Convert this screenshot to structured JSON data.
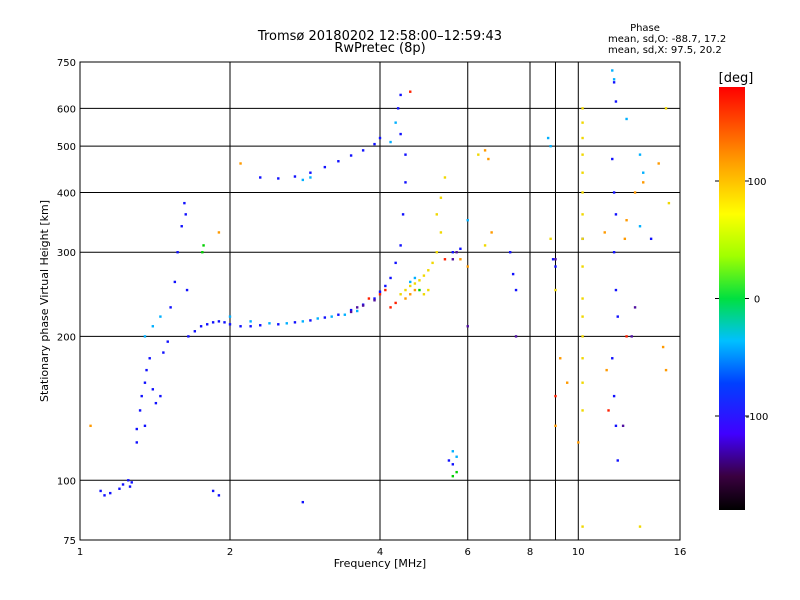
{
  "chart_data": {
    "type": "scatter",
    "title": "Tromsø 20180202 12:58:00–12:59:43",
    "subtitle": "RwPretec (8p)",
    "xlabel": "Frequency [MHz]",
    "ylabel": "Stationary phase Virtual Height [km]",
    "x_scale": "log",
    "y_scale": "log",
    "xlim": [
      1,
      16
    ],
    "ylim": [
      75,
      750
    ],
    "x_ticks": [
      1,
      2,
      4,
      6,
      8,
      10,
      16
    ],
    "x_tick_labels": [
      "1",
      "2",
      "4",
      "6",
      "8",
      "10",
      "16"
    ],
    "x_minor_ticks": [
      9
    ],
    "y_ticks": [
      75,
      100,
      200,
      300,
      400,
      500,
      600,
      750
    ],
    "y_tick_labels": [
      "75",
      "100",
      "200",
      "300",
      "400",
      "500",
      "600",
      "750"
    ],
    "grid": true,
    "stats": {
      "heading": "Phase",
      "line_o": "mean, sd,O: -88.7, 17.2",
      "line_x": "mean, sd,X:  97.5, 20.2"
    },
    "colorbar": {
      "label": "[deg]",
      "range": [
        -180,
        180
      ],
      "ticks": [
        100,
        0,
        -100
      ],
      "tick_labels": [
        "100",
        "0",
        "-100"
      ]
    },
    "series": [
      {
        "color": "blue",
        "points": [
          [
            1.1,
            95
          ],
          [
            1.12,
            93
          ],
          [
            1.15,
            94
          ],
          [
            1.2,
            96
          ],
          [
            1.22,
            98
          ],
          [
            1.25,
            100
          ],
          [
            1.26,
            97
          ],
          [
            1.27,
            99
          ],
          [
            1.3,
            128
          ],
          [
            1.32,
            140
          ],
          [
            1.33,
            150
          ],
          [
            1.35,
            160
          ],
          [
            1.36,
            170
          ],
          [
            1.38,
            180
          ],
          [
            1.4,
            155
          ],
          [
            1.42,
            145
          ],
          [
            1.45,
            150
          ],
          [
            1.47,
            185
          ],
          [
            1.5,
            195
          ],
          [
            1.52,
            230
          ],
          [
            1.55,
            260
          ],
          [
            1.57,
            300
          ],
          [
            1.6,
            340
          ],
          [
            1.62,
            380
          ],
          [
            1.63,
            360
          ],
          [
            1.64,
            250
          ],
          [
            1.65,
            200
          ],
          [
            1.7,
            205
          ],
          [
            1.75,
            210
          ],
          [
            1.8,
            212
          ],
          [
            1.85,
            214
          ],
          [
            1.9,
            215
          ],
          [
            1.95,
            214
          ],
          [
            2.0,
            212
          ],
          [
            2.1,
            210
          ],
          [
            2.2,
            210
          ],
          [
            2.3,
            211
          ],
          [
            2.5,
            212
          ],
          [
            2.7,
            214
          ],
          [
            2.9,
            216
          ],
          [
            3.1,
            219
          ],
          [
            3.3,
            222
          ],
          [
            3.5,
            227
          ],
          [
            3.7,
            233
          ],
          [
            3.9,
            240
          ],
          [
            4.0,
            248
          ],
          [
            4.1,
            255
          ],
          [
            4.2,
            265
          ],
          [
            4.3,
            285
          ],
          [
            4.4,
            310
          ],
          [
            4.45,
            360
          ],
          [
            4.5,
            420
          ],
          [
            4.5,
            480
          ],
          [
            4.4,
            530
          ],
          [
            4.35,
            600
          ],
          [
            4.4,
            640
          ],
          [
            2.3,
            430
          ],
          [
            2.5,
            428
          ],
          [
            2.7,
            432
          ],
          [
            2.9,
            440
          ],
          [
            3.1,
            452
          ],
          [
            3.3,
            465
          ],
          [
            3.5,
            478
          ],
          [
            3.7,
            490
          ],
          [
            3.9,
            505
          ],
          [
            4.0,
            520
          ],
          [
            5.6,
            300
          ],
          [
            5.8,
            305
          ],
          [
            5.5,
            110
          ],
          [
            5.6,
            108
          ],
          [
            7.3,
            300
          ],
          [
            7.4,
            270
          ],
          [
            7.5,
            250
          ],
          [
            11.7,
            470
          ],
          [
            11.8,
            400
          ],
          [
            11.9,
            360
          ],
          [
            11.8,
            300
          ],
          [
            11.9,
            250
          ],
          [
            12.0,
            220
          ],
          [
            11.7,
            180
          ],
          [
            11.8,
            150
          ],
          [
            11.9,
            130
          ],
          [
            12.0,
            110
          ],
          [
            11.8,
            680
          ],
          [
            11.9,
            620
          ],
          [
            14.0,
            320
          ],
          [
            10.2,
            320
          ],
          [
            9.0,
            280
          ],
          [
            8.9,
            290
          ],
          [
            2.8,
            90
          ],
          [
            1.9,
            93
          ],
          [
            1.85,
            95
          ],
          [
            1.3,
            120
          ],
          [
            1.35,
            130
          ]
        ]
      },
      {
        "color": "cyan",
        "points": [
          [
            2.0,
            220
          ],
          [
            2.2,
            215
          ],
          [
            2.4,
            213
          ],
          [
            2.6,
            213
          ],
          [
            2.8,
            215
          ],
          [
            3.0,
            218
          ],
          [
            3.2,
            220
          ],
          [
            3.4,
            222
          ],
          [
            3.6,
            226
          ],
          [
            4.6,
            260
          ],
          [
            4.7,
            265
          ],
          [
            6.0,
            350
          ],
          [
            5.6,
            115
          ],
          [
            5.7,
            112
          ],
          [
            11.7,
            720
          ],
          [
            11.8,
            690
          ],
          [
            13.3,
            480
          ],
          [
            13.5,
            440
          ],
          [
            13.3,
            340
          ],
          [
            1.35,
            200
          ],
          [
            1.4,
            210
          ],
          [
            1.45,
            220
          ],
          [
            2.8,
            425
          ],
          [
            2.9,
            430
          ],
          [
            8.7,
            520
          ],
          [
            8.8,
            500
          ],
          [
            12.5,
            570
          ],
          [
            4.3,
            560
          ],
          [
            4.2,
            510
          ]
        ]
      },
      {
        "color": "green",
        "points": [
          [
            1.77,
            310
          ],
          [
            1.76,
            300
          ],
          [
            5.6,
            102
          ],
          [
            5.7,
            104
          ],
          [
            4.8,
            250
          ]
        ]
      },
      {
        "color": "yellow",
        "points": [
          [
            4.4,
            245
          ],
          [
            4.5,
            250
          ],
          [
            4.6,
            255
          ],
          [
            4.7,
            258
          ],
          [
            4.8,
            262
          ],
          [
            4.9,
            268
          ],
          [
            5.0,
            275
          ],
          [
            5.1,
            285
          ],
          [
            5.2,
            300
          ],
          [
            5.3,
            330
          ],
          [
            5.2,
            360
          ],
          [
            5.3,
            390
          ],
          [
            5.4,
            430
          ],
          [
            4.9,
            245
          ],
          [
            5.0,
            250
          ],
          [
            10.2,
            600
          ],
          [
            10.2,
            560
          ],
          [
            10.2,
            520
          ],
          [
            10.2,
            480
          ],
          [
            10.2,
            440
          ],
          [
            10.2,
            400
          ],
          [
            10.2,
            360
          ],
          [
            10.2,
            320
          ],
          [
            10.2,
            280
          ],
          [
            10.2,
            240
          ],
          [
            10.2,
            220
          ],
          [
            10.2,
            200
          ],
          [
            10.2,
            180
          ],
          [
            10.2,
            160
          ],
          [
            10.2,
            140
          ],
          [
            10.2,
            80
          ],
          [
            6.3,
            480
          ],
          [
            6.5,
            310
          ],
          [
            15.0,
            600
          ],
          [
            15.2,
            380
          ],
          [
            13.3,
            80
          ],
          [
            8.8,
            320
          ],
          [
            9.0,
            250
          ]
        ]
      },
      {
        "color": "orange",
        "points": [
          [
            4.5,
            240
          ],
          [
            4.6,
            245
          ],
          [
            4.7,
            250
          ],
          [
            5.8,
            290
          ],
          [
            6.0,
            280
          ],
          [
            6.5,
            490
          ],
          [
            6.6,
            470
          ],
          [
            6.7,
            330
          ],
          [
            12.5,
            350
          ],
          [
            12.4,
            320
          ],
          [
            13.0,
            400
          ],
          [
            13.5,
            420
          ],
          [
            14.5,
            460
          ],
          [
            14.8,
            190
          ],
          [
            9.2,
            180
          ],
          [
            9.5,
            160
          ],
          [
            9.0,
            130
          ],
          [
            10.0,
            120
          ],
          [
            1.05,
            130
          ],
          [
            1.9,
            330
          ],
          [
            2.1,
            460
          ],
          [
            11.3,
            330
          ],
          [
            11.4,
            170
          ],
          [
            15.0,
            170
          ]
        ]
      },
      {
        "color": "red",
        "points": [
          [
            3.8,
            240
          ],
          [
            4.0,
            245
          ],
          [
            4.1,
            250
          ],
          [
            4.2,
            230
          ],
          [
            4.3,
            235
          ],
          [
            4.6,
            650
          ],
          [
            9.0,
            150
          ],
          [
            11.5,
            140
          ],
          [
            12.5,
            200
          ],
          [
            5.4,
            290
          ]
        ]
      },
      {
        "color": "purple",
        "points": [
          [
            3.5,
            225
          ],
          [
            3.6,
            230
          ],
          [
            3.7,
            232
          ],
          [
            3.9,
            238
          ],
          [
            5.6,
            290
          ],
          [
            5.7,
            300
          ],
          [
            6.0,
            210
          ],
          [
            9.0,
            290
          ],
          [
            12.3,
            130
          ],
          [
            12.8,
            200
          ],
          [
            13.0,
            230
          ],
          [
            7.5,
            200
          ]
        ]
      }
    ]
  }
}
